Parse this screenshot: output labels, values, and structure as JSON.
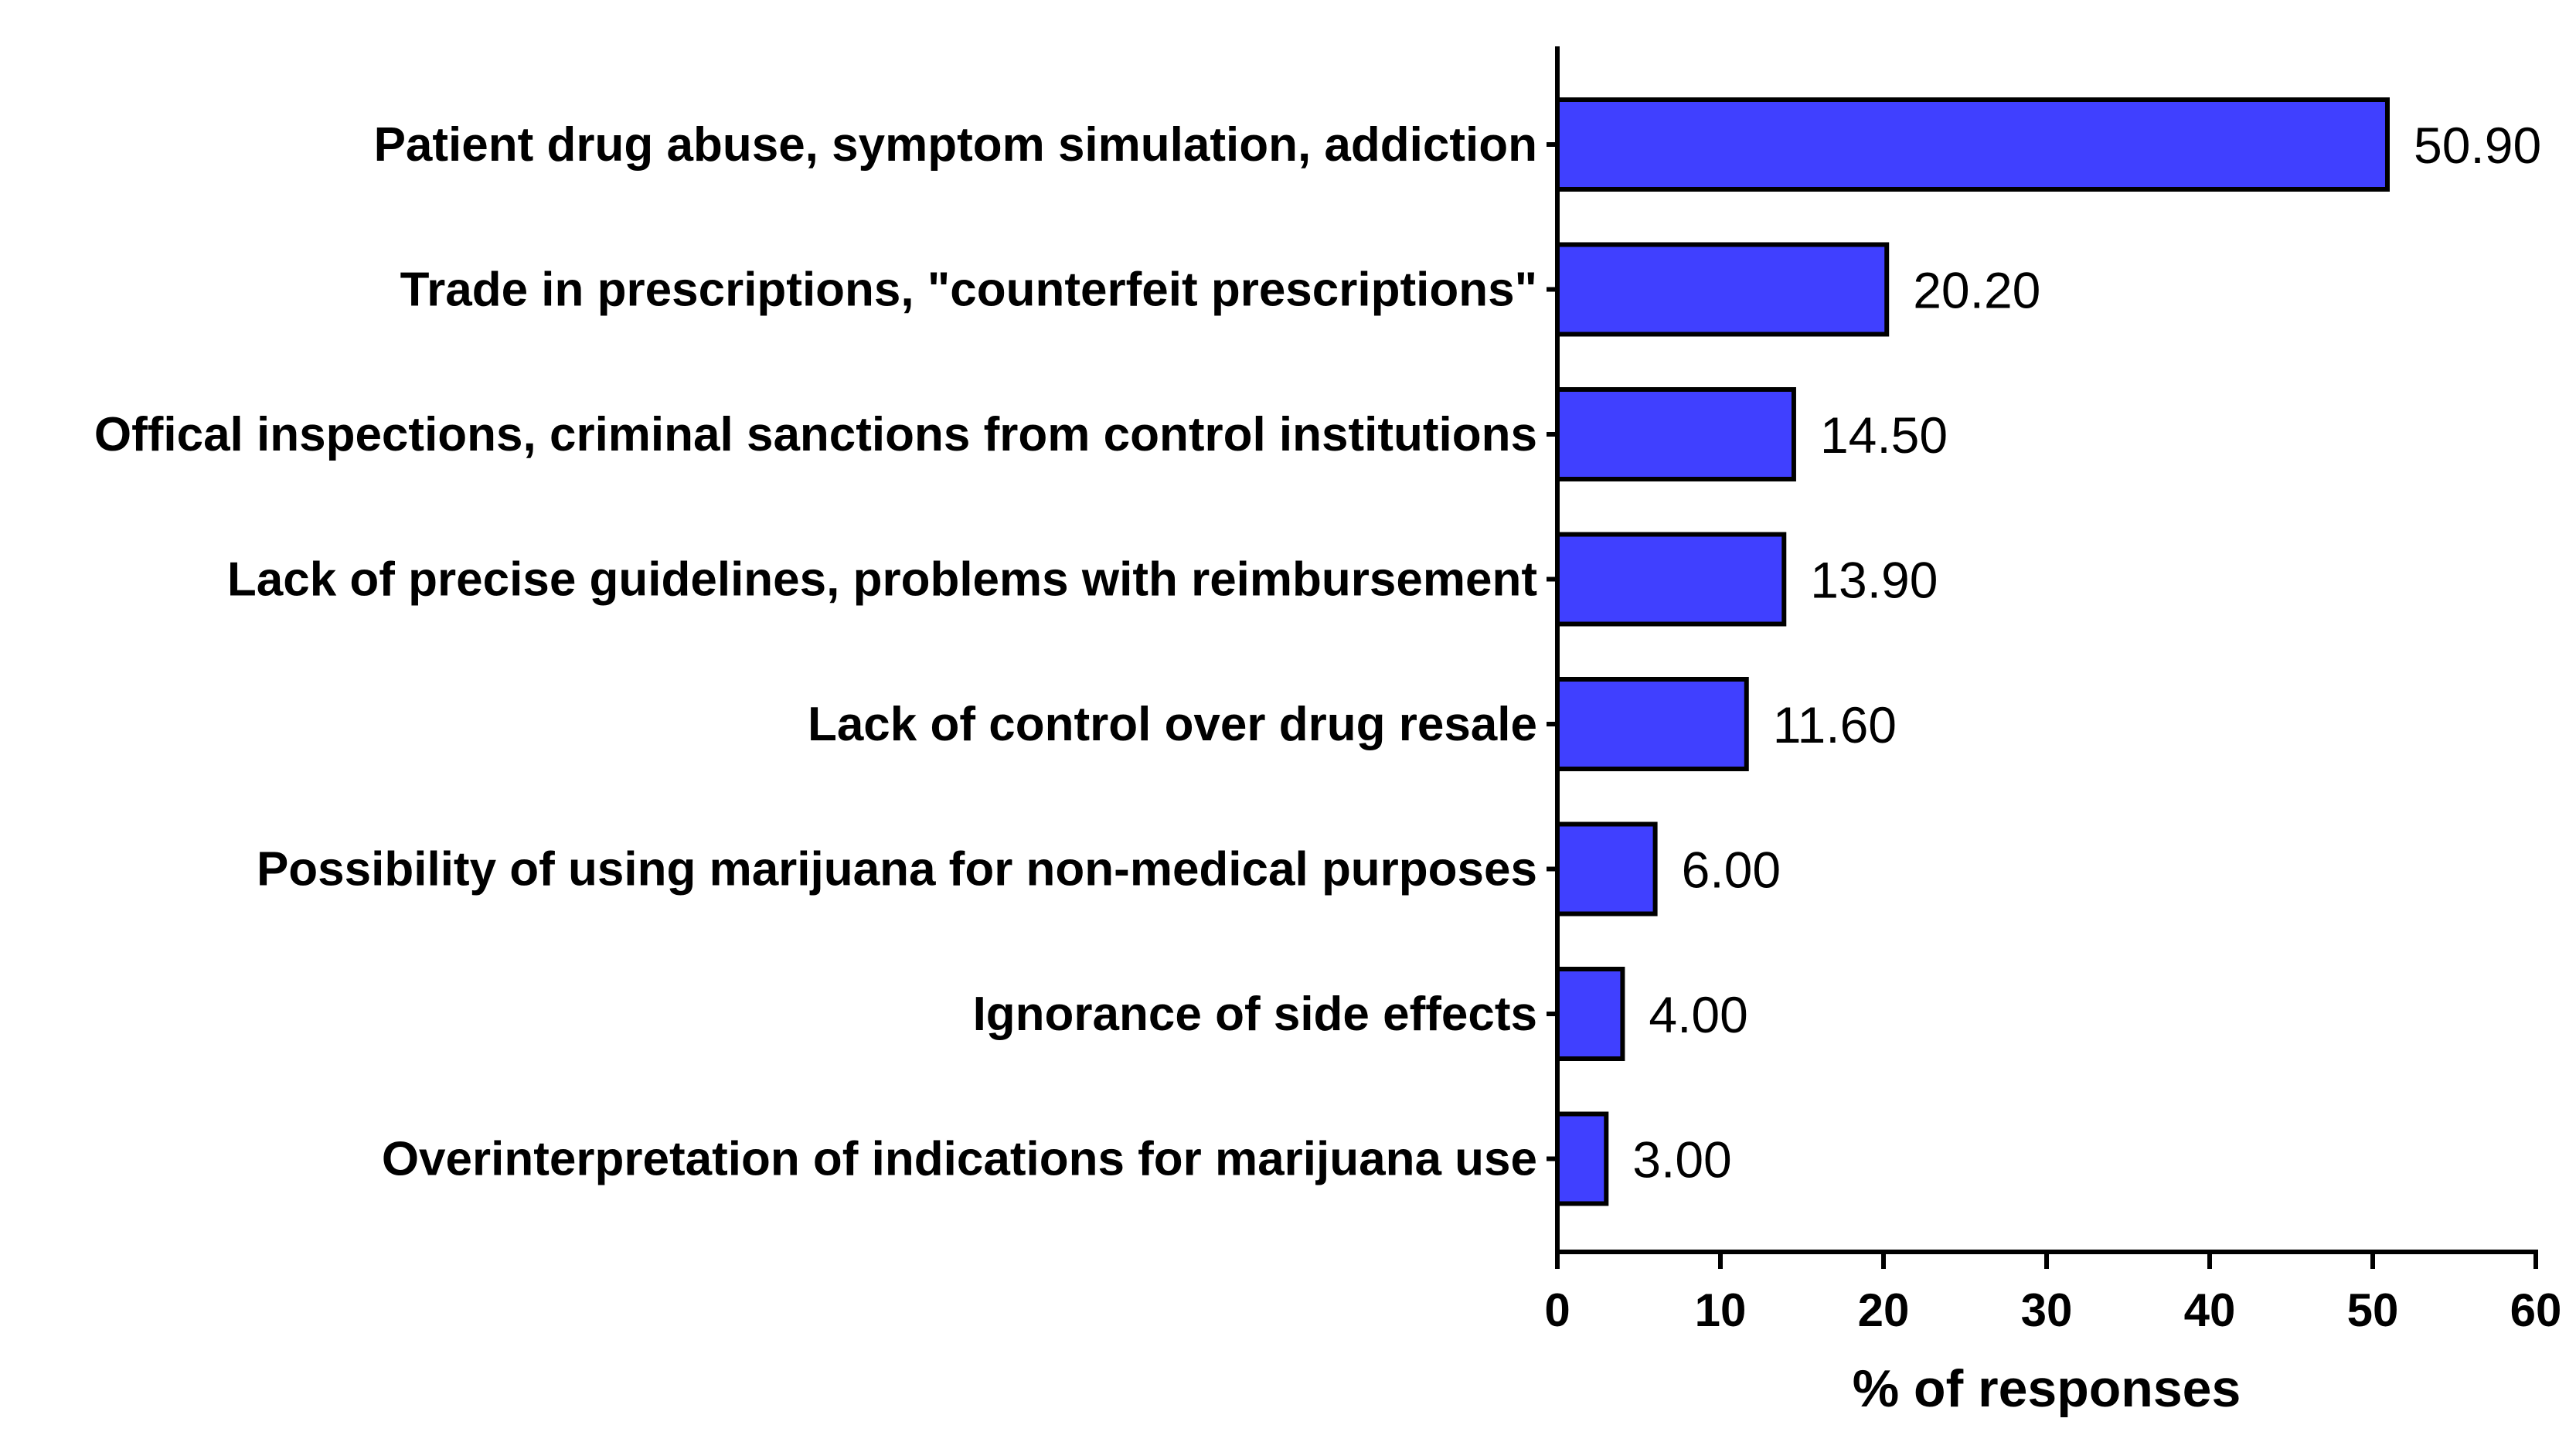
{
  "chart_data": {
    "type": "bar",
    "orientation": "horizontal",
    "categories": [
      "Patient drug abuse, symptom simulation, addiction",
      "Trade in prescriptions, \"counterfeit prescriptions\"",
      "Offical inspections, criminal sanctions from control institutions",
      "Lack of precise guidelines, problems with reimbursement",
      "Lack of control over drug resale",
      "Possibility of using marijuana for non-medical purposes",
      "Ignorance of side effects",
      "Overinterpretation of indications for marijuana use"
    ],
    "values": [
      50.9,
      20.2,
      14.5,
      13.9,
      11.6,
      6.0,
      4.0,
      3.0
    ],
    "value_labels": [
      "50.90",
      "20.20",
      "14.50",
      "13.90",
      "11.60",
      "6.00",
      "4.00",
      "3.00"
    ],
    "title": "",
    "xlabel": "% of responses",
    "ylabel": "",
    "xlim": [
      0,
      60
    ],
    "xticks": [
      "0",
      "10",
      "20",
      "30",
      "40",
      "50",
      "60"
    ],
    "grid": false,
    "legend": "none",
    "bar_color": "#4040FF",
    "bar_edge_color": "#000000"
  }
}
